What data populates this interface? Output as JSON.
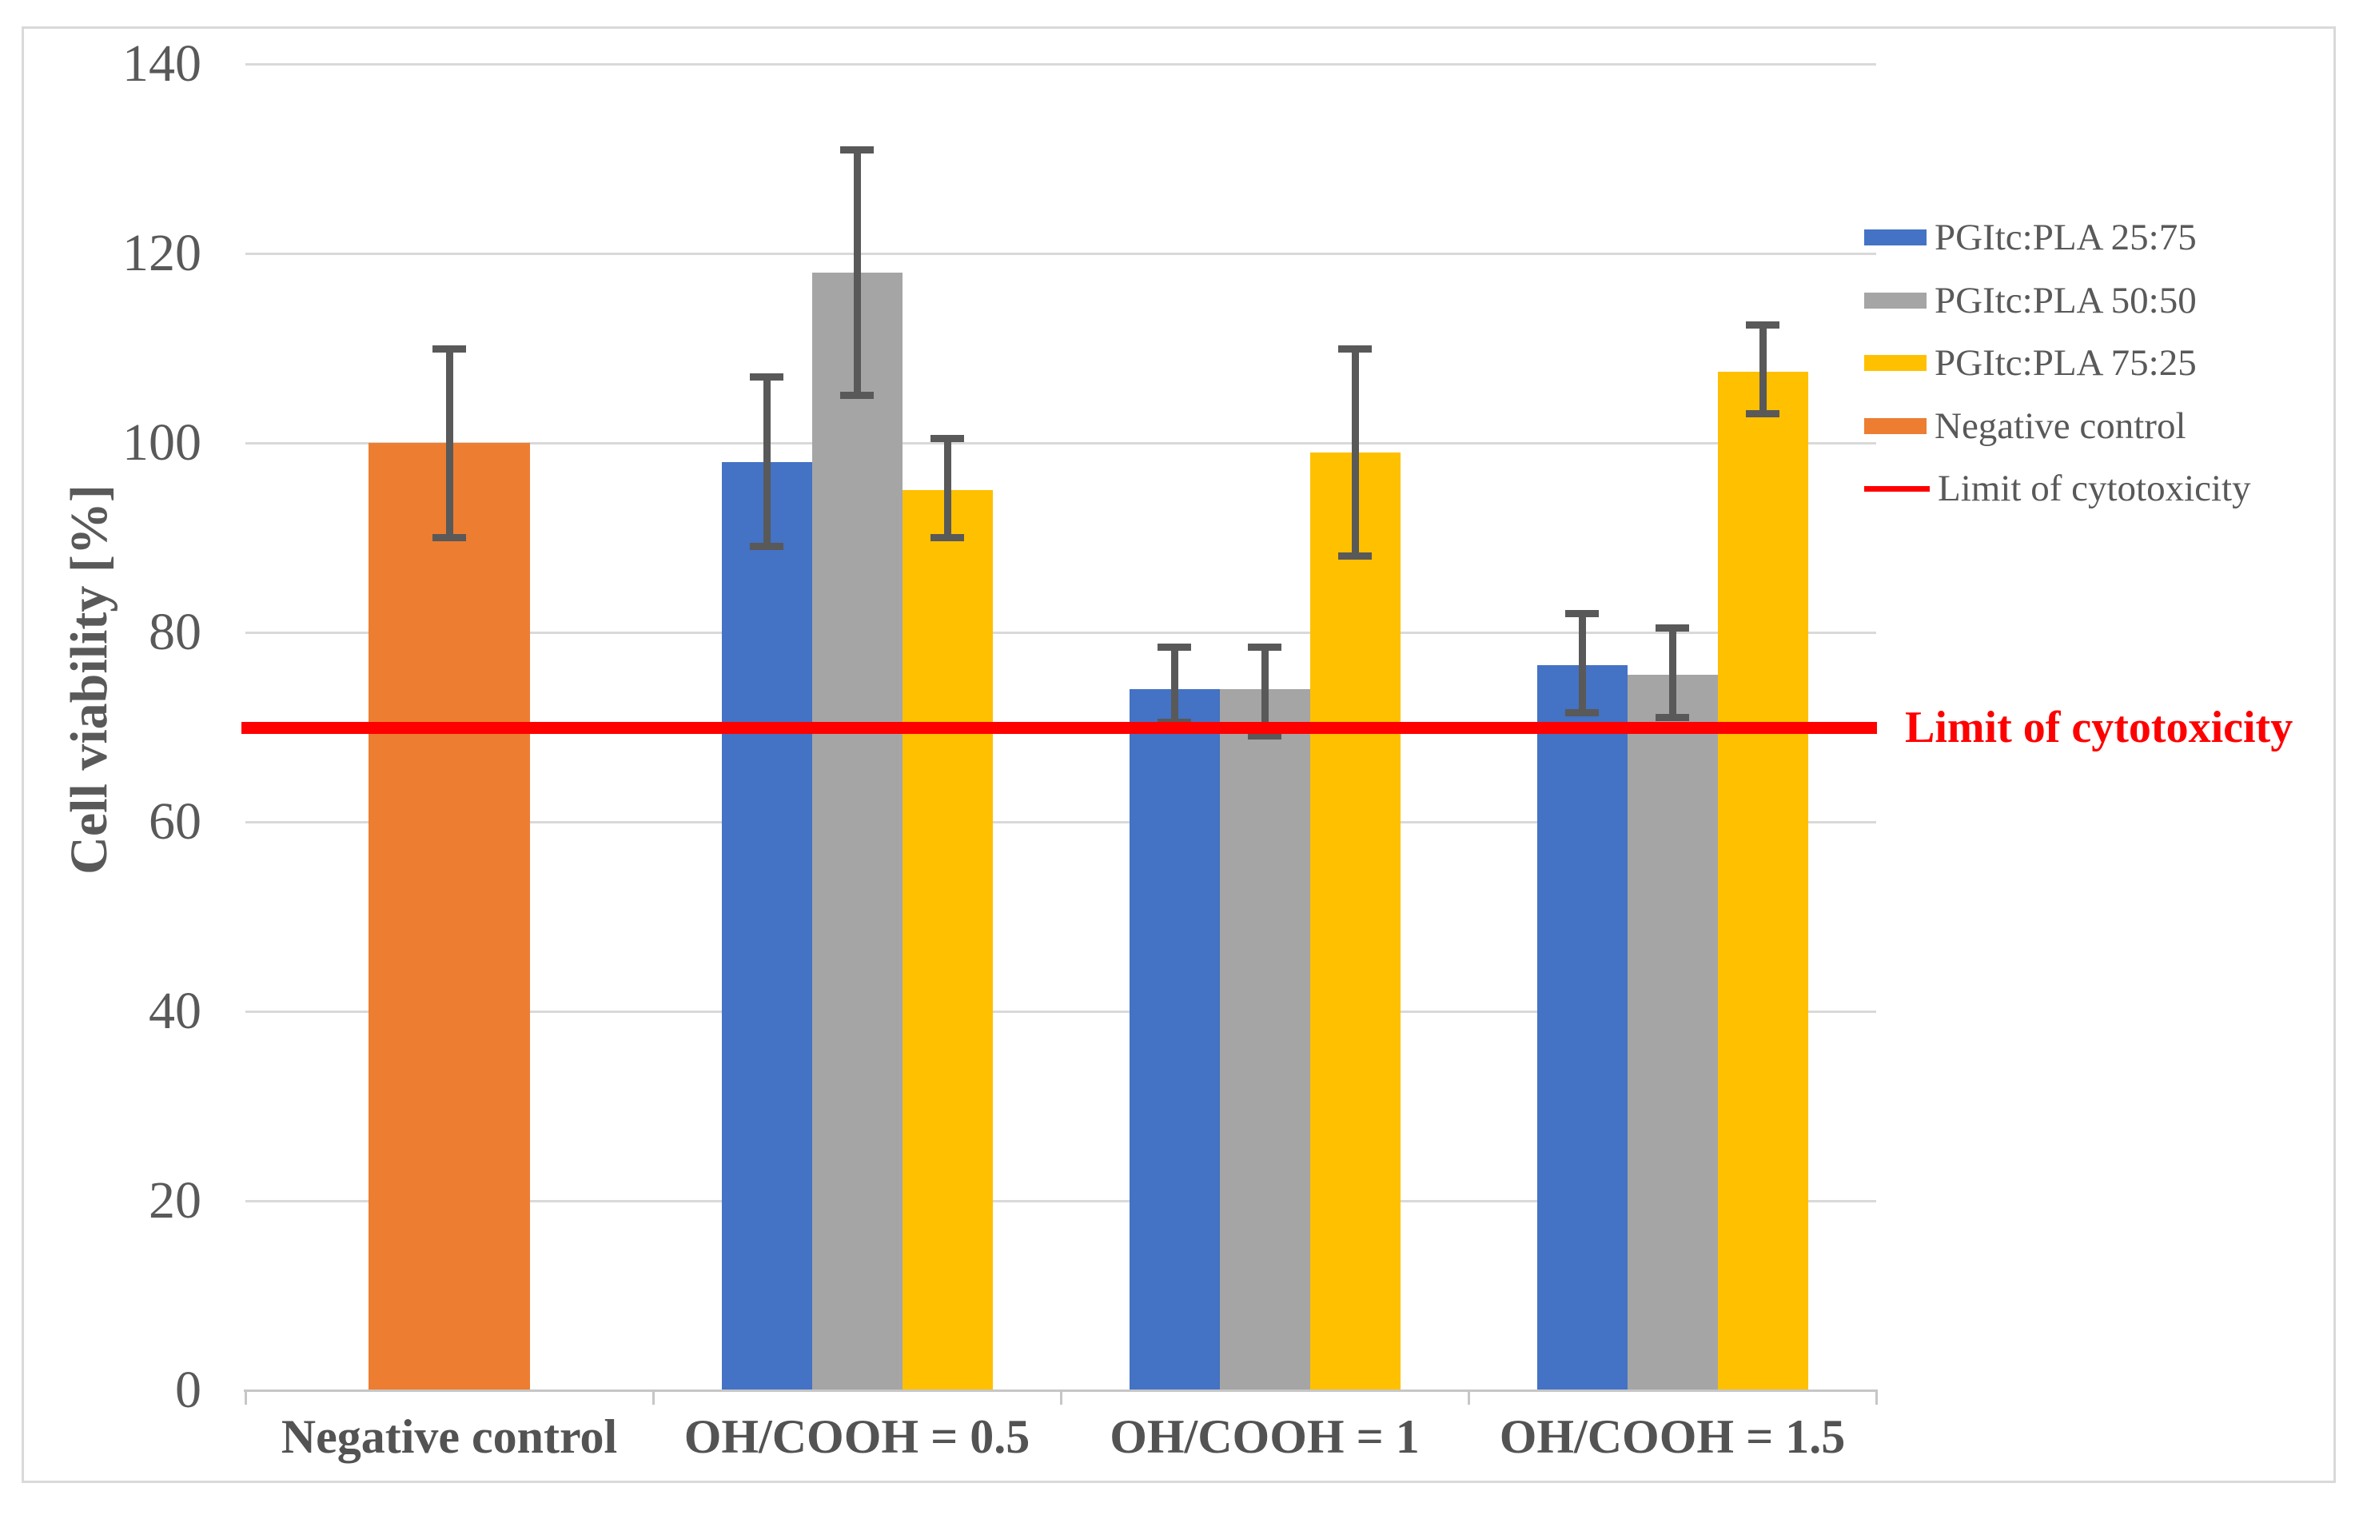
{
  "figure": {
    "background": "#FFFFFF",
    "border_color": "#D9D9D9"
  },
  "chart_data": {
    "type": "bar",
    "title": "",
    "xlabel": "",
    "ylabel": "Cell viability [%]",
    "ylim": [
      0,
      140
    ],
    "yticks": [
      0,
      20,
      40,
      60,
      80,
      100,
      120,
      140
    ],
    "grid": "horizontal",
    "axis_text_color": "#595959",
    "gridline_color": "#D9D9D9",
    "error_bar_color": "#595959",
    "categories": [
      "Negative control",
      "OH/COOH = 0.5",
      "OH/COOH = 1",
      "OH/COOH = 1.5"
    ],
    "series": [
      {
        "name": "PGItc:PLA 25:75",
        "color": "#4472C4",
        "values": [
          null,
          98,
          74,
          76.5
        ],
        "err_lo": [
          null,
          89,
          70.5,
          71.5
        ],
        "err_hi": [
          null,
          107,
          78.5,
          82
        ]
      },
      {
        "name": "PGItc:PLA 50:50",
        "color": "#A5A5A5",
        "values": [
          null,
          118,
          74,
          75.5
        ],
        "err_lo": [
          null,
          105,
          69,
          71
        ],
        "err_hi": [
          null,
          131,
          78.5,
          80.5
        ]
      },
      {
        "name": "PGItc:PLA 75:25",
        "color": "#FFC000",
        "values": [
          null,
          95,
          99,
          107.5
        ],
        "err_lo": [
          null,
          90,
          88,
          103
        ],
        "err_hi": [
          null,
          100.5,
          110,
          112.5
        ]
      },
      {
        "name": "Negative control",
        "color": "#ED7D31",
        "values": [
          100,
          null,
          null,
          null
        ],
        "err_lo": [
          90,
          null,
          null,
          null
        ],
        "err_hi": [
          110,
          null,
          null,
          null
        ]
      }
    ],
    "ref_line": {
      "label": "Limit of cytotoxicity",
      "value": 70,
      "color": "#FF0000"
    },
    "annotation": {
      "text": "Limit of cytotoxicity",
      "color": "#FF0000"
    },
    "legend": {
      "position": "right",
      "entries": [
        {
          "label": "PGItc:PLA 25:75",
          "type": "box",
          "color": "#4472C4"
        },
        {
          "label": "PGItc:PLA 50:50",
          "type": "box",
          "color": "#A5A5A5"
        },
        {
          "label": "PGItc:PLA 75:25",
          "type": "box",
          "color": "#FFC000"
        },
        {
          "label": "Negative control",
          "type": "box",
          "color": "#ED7D31"
        },
        {
          "label": "Limit of cytotoxicity",
          "type": "line",
          "color": "#FF0000"
        }
      ]
    }
  }
}
